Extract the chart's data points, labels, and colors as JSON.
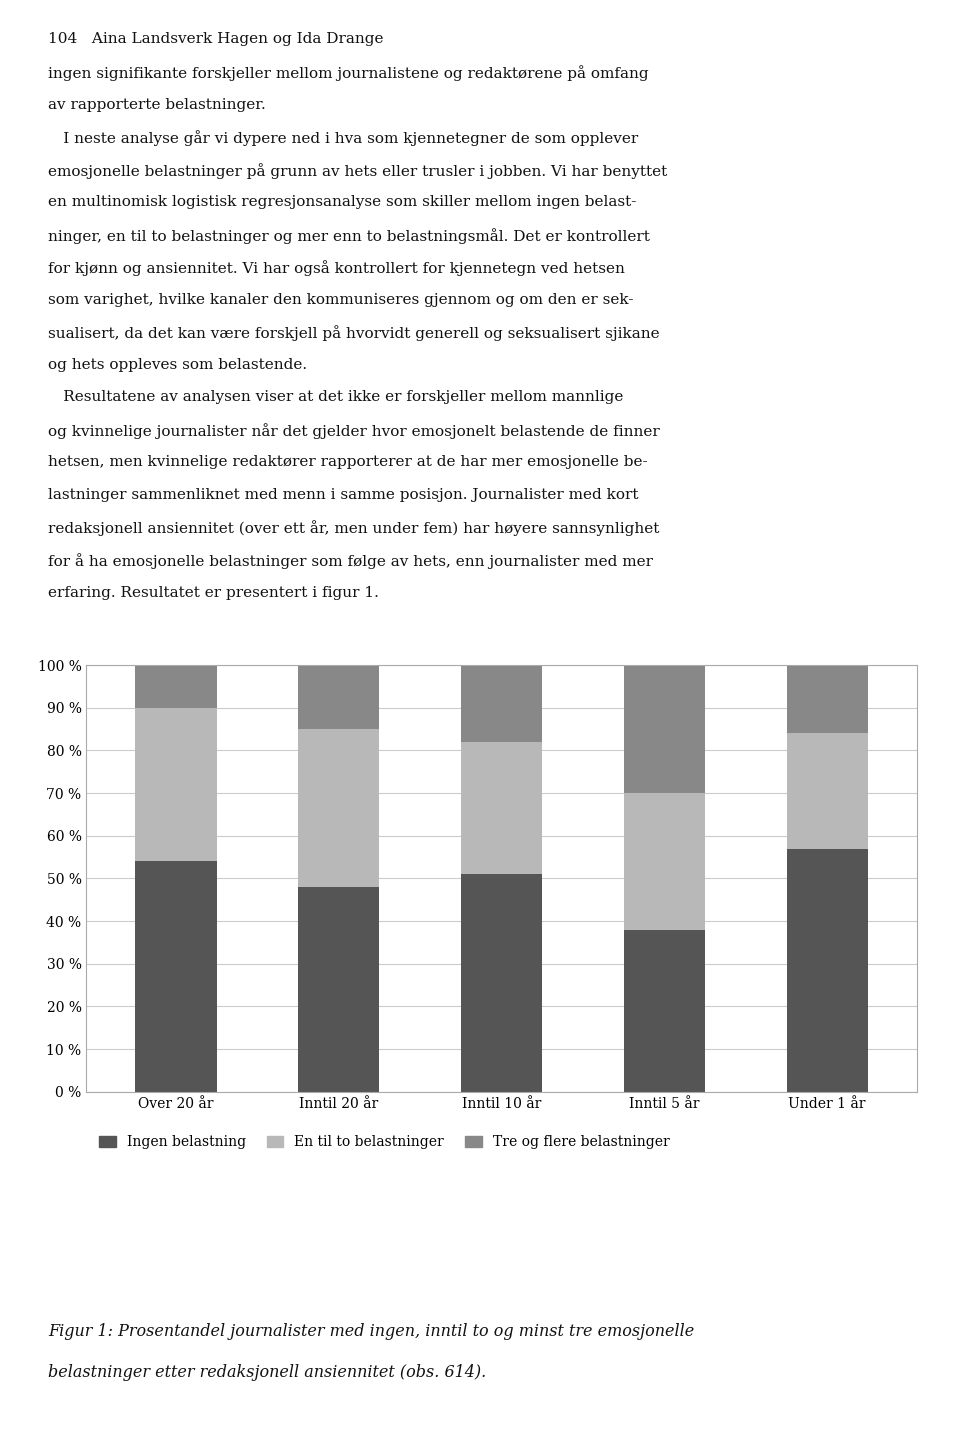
{
  "categories": [
    "Over 20 år",
    "Inntil 20 år",
    "Inntil 10 år",
    "Inntil 5 år",
    "Under 1 år"
  ],
  "series": {
    "Ingen belastning": [
      54,
      48,
      51,
      38,
      57
    ],
    "En til to belastninger": [
      36,
      37,
      31,
      32,
      27
    ],
    "Tre og flere belastninger": [
      10,
      15,
      18,
      30,
      16
    ]
  },
  "colors": {
    "Ingen belastning": "#555555",
    "En til to belastninger": "#b8b8b8",
    "Tre og flere belastninger": "#888888"
  },
  "ylim": [
    0,
    100
  ],
  "yticks": [
    0,
    10,
    20,
    30,
    40,
    50,
    60,
    70,
    80,
    90,
    100
  ],
  "ytick_labels": [
    "0 %",
    "10 %",
    "20 %",
    "30 %",
    "40 %",
    "50 %",
    "60 %",
    "70 %",
    "80 %",
    "90 %",
    "100 %"
  ],
  "legend_labels": [
    "Ingen belastning",
    "En til to belastninger",
    "Tre og flere belastninger"
  ],
  "bar_width": 0.5,
  "background_color": "#ffffff",
  "grid_color": "#cccccc",
  "border_color": "#aaaaaa",
  "tick_fontsize": 10,
  "legend_fontsize": 10,
  "caption_fontsize": 11.5,
  "header_fontsize": 11,
  "body_fontsize": 11,
  "header": "104   Aina Landsverk Hagen og Ida Drange",
  "body_lines": [
    "ingen signifikante forskjeller mellom journalistene og redaktørene på omfang",
    "av rapporterte belastninger.",
    " I neste analyse går vi dypere ned i hva som kjennetegner de som opplever",
    "emosjonelle belastninger på grunn av hets eller trusler i jobben. Vi har benyttet",
    "en multinomisk logistisk regresjonsanalyse som skiller mellom ingen belast-",
    "ninger, en til to belastninger og mer enn to belastningsmål. Det er kontrollert",
    "for kjønn og ansiennitet. Vi har også kontrollert for kjennetegn ved hetsen",
    "som varighet, hvilke kanaler den kommuniseres gjennom og om den er sek-",
    "sualisert, da det kan være forskjell på hvorvidt generell og seksualisert sjikane",
    "og hets oppleves som belastende.",
    " Resultatene av analysen viser at det ikke er forskjeller mellom mannlige",
    "og kvinnelige journalister når det gjelder hvor emosjonelt belastende de finner",
    "hetsen, men kvinnelige redaktører rapporterer at de har mer emosjonelle be-",
    "lastninger sammenliknet med menn i samme posisjon. Journalister med kort",
    "redaksjonell ansiennitet (over ett år, men under fem) har høyere sannsynlighet",
    "for å ha emosjonelle belastninger som følge av hets, enn journalister med mer",
    "erfaring. Resultatet er presentert i figur 1."
  ],
  "caption_line1": "Figur 1: Prosentandel journalister med ingen, inntil to og minst tre emosjonelle",
  "caption_line2": "belastninger etter redaksjonell ansiennitet (obs. 614)."
}
